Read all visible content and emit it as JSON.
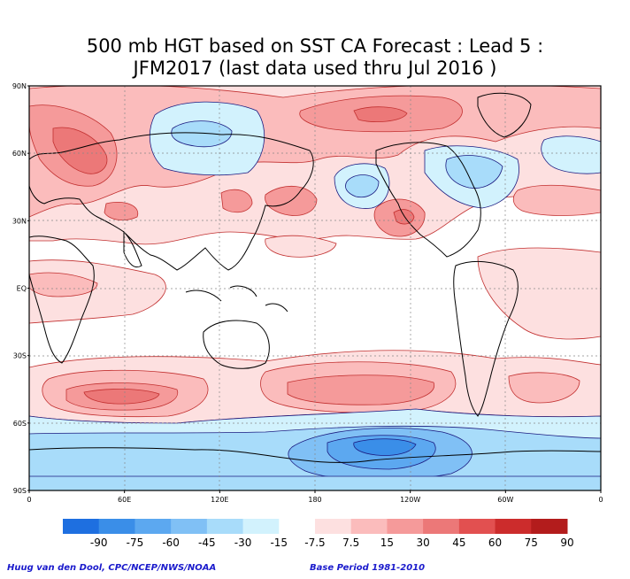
{
  "title_line1": "500 mb HGT based on SST CA Forecast : Lead 5 :",
  "title_line2": "JFM2017 (last data used thru Jul 2016 )",
  "lat_labels": [
    "90N",
    "60N",
    "30N",
    "EQ",
    "30S",
    "60S",
    "90S"
  ],
  "lon_labels": [
    "0",
    "60E",
    "120E",
    "180",
    "120W",
    "60W",
    "0"
  ],
  "colorbar": {
    "colors": [
      "#1e6fe0",
      "#3a8ee8",
      "#5ca8f0",
      "#80c0f5",
      "#a8dcfa",
      "#d2f2fd",
      "#ffffff",
      "#fde0e0",
      "#fbbcbc",
      "#f59a9a",
      "#ec7878",
      "#e25050",
      "#cc2c2c",
      "#b31c1c"
    ],
    "labels": [
      "-90",
      "-75",
      "-60",
      "-45",
      "-30",
      "-15",
      "-7.5",
      "7.5",
      "15",
      "30",
      "45",
      "60",
      "75",
      "90"
    ]
  },
  "credit_left": "Huug van den Dool, CPC/NCEP/NWS/NOAA",
  "credit_right": "Base Period 1981-2010"
}
